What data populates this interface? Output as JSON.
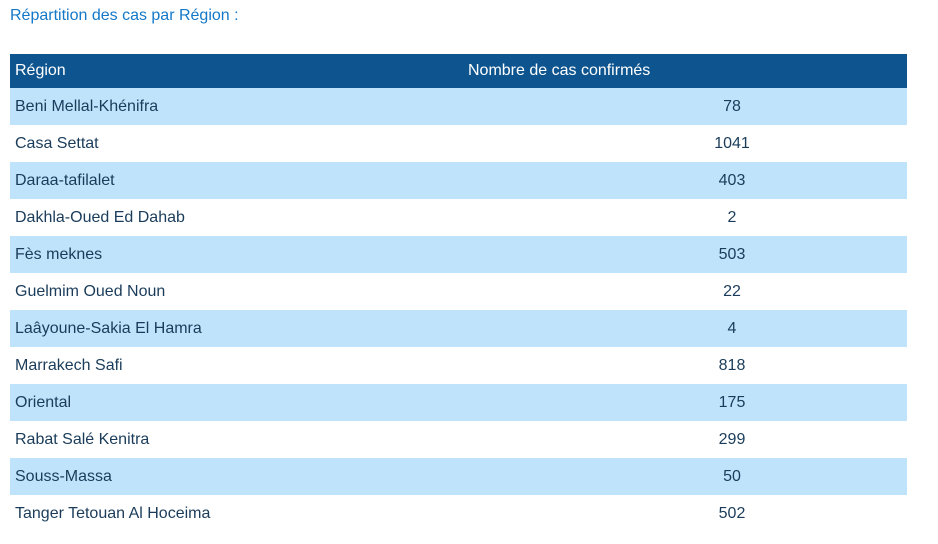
{
  "section": {
    "title": "Répartition des cas par Région :"
  },
  "table": {
    "headers": {
      "region": "Région",
      "cases": "Nombre de cas confirmés"
    },
    "rows": [
      {
        "region": "Beni Mellal-Khénifra",
        "cases": "78"
      },
      {
        "region": "Casa Settat",
        "cases": "1041"
      },
      {
        "region": "Daraa-tafilalet",
        "cases": "403"
      },
      {
        "region": "Dakhla-Oued Ed Dahab",
        "cases": "2"
      },
      {
        "region": "Fès meknes",
        "cases": "503"
      },
      {
        "region": "Guelmim Oued Noun",
        "cases": "22"
      },
      {
        "region": "Laâyoune-Sakia El Hamra",
        "cases": "4"
      },
      {
        "region": "Marrakech Safi",
        "cases": "818"
      },
      {
        "region": "Oriental",
        "cases": "175"
      },
      {
        "region": "Rabat Salé Kenitra",
        "cases": "299"
      },
      {
        "region": "Souss-Massa",
        "cases": "50"
      },
      {
        "region": "Tanger Tetouan Al Hoceima",
        "cases": "502"
      }
    ]
  },
  "colors": {
    "title": "#1478c8",
    "header_bg": "#0e5590",
    "header_text": "#ffffff",
    "row_stripe": "#bfe3fb",
    "row_plain": "#ffffff",
    "cell_text": "#1a3c5a"
  }
}
